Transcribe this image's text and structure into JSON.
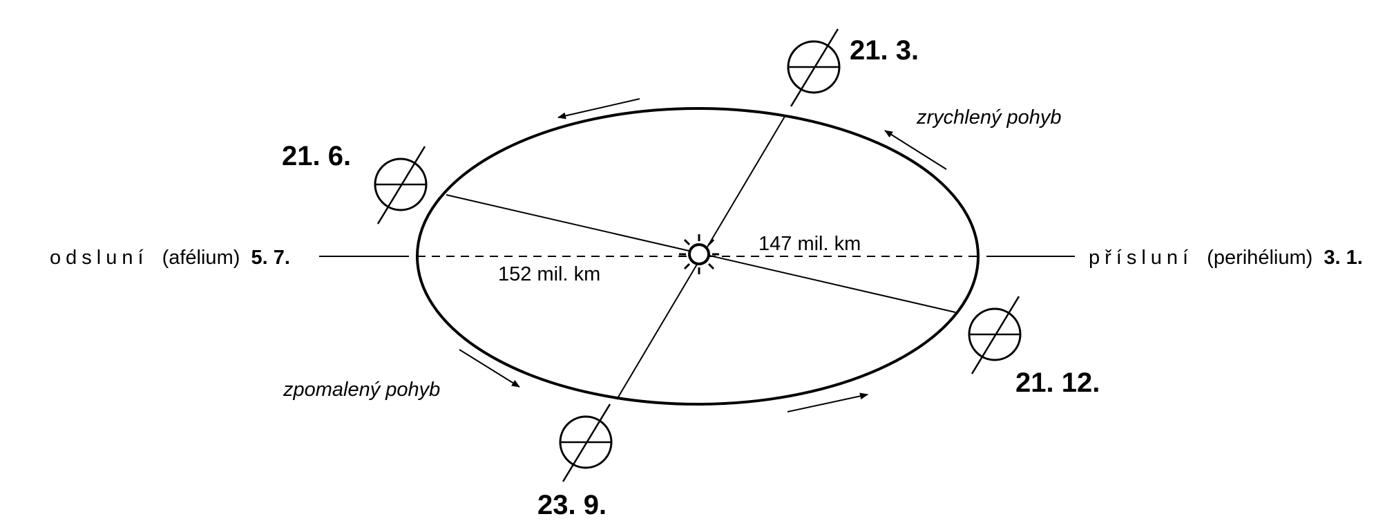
{
  "dates": {
    "march": "21. 3.",
    "june": "21. 6.",
    "september": "23. 9.",
    "december": "21. 12."
  },
  "aphelion": {
    "word": "odsluní",
    "term": "(afélium)",
    "date": "5. 7."
  },
  "perihelion": {
    "word": "přísluní",
    "term": "(perihélium)",
    "date": "3. 1."
  },
  "distances": {
    "perihelion": "147 mil. km",
    "aphelion": "152 mil. km"
  },
  "motion": {
    "fast": "zrychlený pohyb",
    "slow": "zpomalený pohyb"
  }
}
